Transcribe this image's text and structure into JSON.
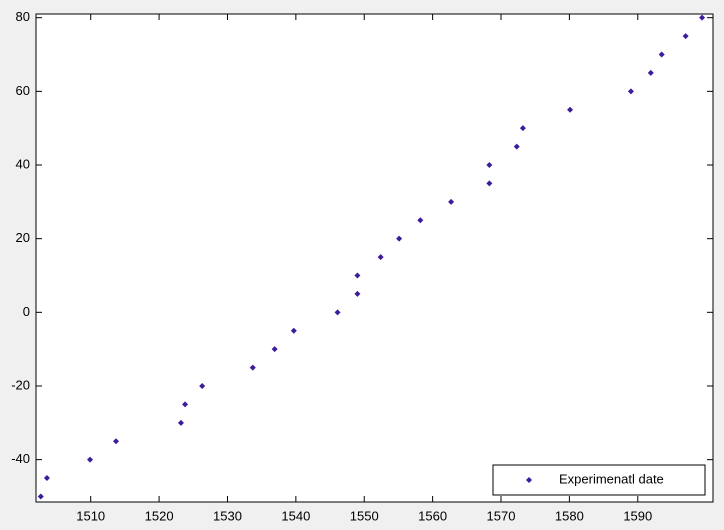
{
  "chart_data": {
    "type": "scatter",
    "series": [
      {
        "name": "Experimenatl date",
        "color": "#3c1c9c",
        "x": [
          1502.7,
          1503.6,
          1509.9,
          1513.7,
          1523.2,
          1523.8,
          1526.3,
          1533.7,
          1536.9,
          1539.7,
          1546.1,
          1549.0,
          1549.0,
          1552.4,
          1555.1,
          1558.2,
          1562.7,
          1568.3,
          1568.3,
          1572.3,
          1573.2,
          1580.1,
          1589.0,
          1591.9,
          1593.5,
          1597.0,
          1599.4
        ],
        "values": [
          -50,
          -45,
          -40,
          -35,
          -30,
          -25,
          -20,
          -15,
          -10,
          -5,
          0,
          5,
          10,
          15,
          20,
          25,
          30,
          35,
          40,
          45,
          50,
          55,
          60,
          65,
          70,
          75,
          80
        ]
      }
    ],
    "xlim": [
      1502,
      1601
    ],
    "ylim": [
      -51.5,
      81
    ],
    "xticks": [
      1510,
      1520,
      1530,
      1540,
      1550,
      1560,
      1570,
      1580,
      1590
    ],
    "yticks": [
      -40,
      -20,
      0,
      20,
      40,
      60,
      80
    ],
    "legend": "lower right"
  }
}
